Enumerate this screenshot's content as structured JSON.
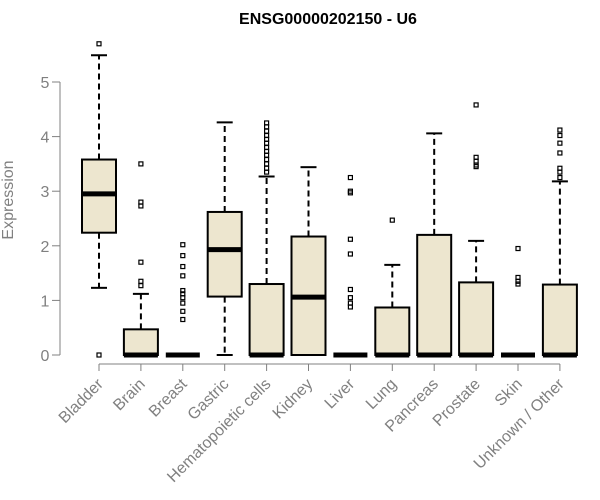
{
  "chart_data": {
    "type": "boxplot",
    "title": "ENSG00000202150 - U6",
    "xlabel": "",
    "ylabel": "Expression",
    "ylim": [
      0,
      5.6
    ],
    "yticks": [
      0,
      1,
      2,
      3,
      4,
      5
    ],
    "grid": false,
    "colors": {
      "box_fill": "#ede6cf",
      "stroke": "#000000",
      "axis": "#808080",
      "label": "#808080"
    },
    "categories": [
      {
        "name": "Bladder",
        "q1": 2.24,
        "median": 2.95,
        "q3": 3.58,
        "whisker_low": 1.23,
        "whisker_high": 5.49,
        "outliers": [
          5.7,
          0.0
        ]
      },
      {
        "name": "Brain",
        "q1": 0.0,
        "median": 0.0,
        "q3": 0.47,
        "whisker_low": 0.0,
        "whisker_high": 1.12,
        "outliers": [
          3.5,
          2.8,
          2.73,
          1.7,
          1.35,
          1.27
        ]
      },
      {
        "name": "Breast",
        "q1": 0.0,
        "median": 0.0,
        "q3": 0.0,
        "whisker_low": 0.0,
        "whisker_high": 0.0,
        "outliers": [
          2.02,
          1.82,
          1.62,
          1.45,
          1.18,
          1.12,
          1.05,
          0.95,
          0.8,
          0.65
        ]
      },
      {
        "name": "Gastric",
        "q1": 1.07,
        "median": 1.93,
        "q3": 2.62,
        "whisker_low": 0.0,
        "whisker_high": 4.26,
        "outliers": []
      },
      {
        "name": "Hematopoietic cells",
        "q1": 0.0,
        "median": 0.0,
        "q3": 1.3,
        "whisker_low": 0.0,
        "whisker_high": 3.27,
        "outliers": [
          4.25,
          4.18,
          4.1,
          4.02,
          3.95,
          3.88,
          3.8,
          3.73,
          3.66,
          3.58,
          3.5,
          3.42,
          3.35
        ]
      },
      {
        "name": "Kidney",
        "q1": 0.0,
        "median": 1.06,
        "q3": 2.17,
        "whisker_low": 0.0,
        "whisker_high": 3.44,
        "outliers": []
      },
      {
        "name": "Liver",
        "q1": 0.0,
        "median": 0.0,
        "q3": 0.0,
        "whisker_low": 0.0,
        "whisker_high": 0.0,
        "outliers": [
          3.25,
          3.0,
          2.97,
          2.12,
          1.85,
          1.2,
          1.05,
          0.95,
          0.88
        ]
      },
      {
        "name": "Lung",
        "q1": 0.0,
        "median": 0.0,
        "q3": 0.87,
        "whisker_low": 0.0,
        "whisker_high": 1.65,
        "outliers": [
          2.47
        ]
      },
      {
        "name": "Pancreas",
        "q1": 0.0,
        "median": 0.0,
        "q3": 2.2,
        "whisker_low": 0.0,
        "whisker_high": 4.06,
        "outliers": []
      },
      {
        "name": "Prostate",
        "q1": 0.0,
        "median": 0.0,
        "q3": 1.33,
        "whisker_low": 0.0,
        "whisker_high": 2.09,
        "outliers": [
          4.58,
          3.62,
          3.55,
          3.48,
          3.45
        ]
      },
      {
        "name": "Skin",
        "q1": 0.0,
        "median": 0.0,
        "q3": 0.0,
        "whisker_low": 0.0,
        "whisker_high": 0.0,
        "outliers": [
          1.95,
          1.42,
          1.35,
          1.3
        ]
      },
      {
        "name": "Unknown / Other",
        "q1": 0.0,
        "median": 0.0,
        "q3": 1.29,
        "whisker_low": 0.0,
        "whisker_high": 3.18,
        "outliers": [
          4.12,
          4.02,
          3.88,
          3.7,
          3.42,
          3.35,
          3.25
        ]
      }
    ]
  }
}
